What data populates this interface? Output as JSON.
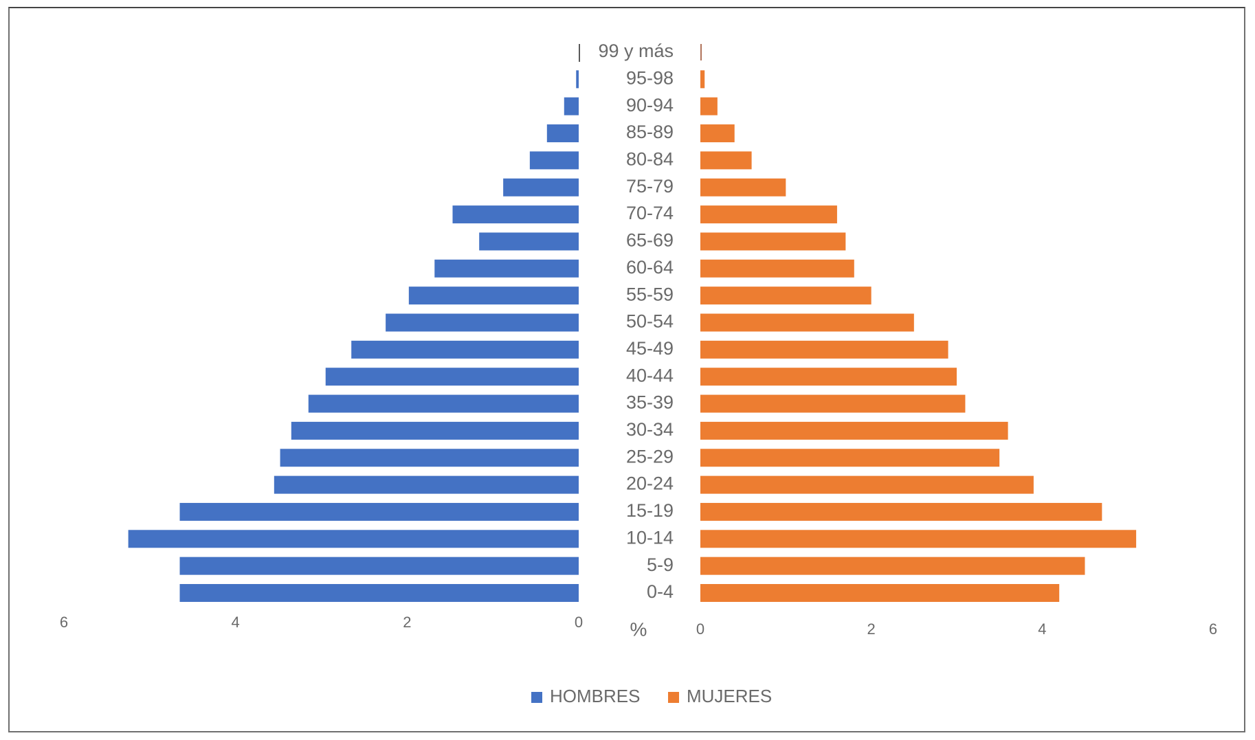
{
  "chart_data": {
    "type": "bar",
    "orientation": "horizontal",
    "layout": "population-pyramid",
    "categories": [
      "0-4",
      "5-9",
      "10-14",
      "15-19",
      "20-24",
      "25-29",
      "30-34",
      "35-39",
      "40-44",
      "45-49",
      "50-54",
      "55-59",
      "60-64",
      "65-69",
      "70-74",
      "75-79",
      "80-84",
      "85-89",
      "90-94",
      "95-98",
      "99 y más"
    ],
    "series": [
      {
        "name": "HOMBRES",
        "color": "#4472c4",
        "side": "left",
        "values": [
          4.65,
          4.65,
          5.25,
          4.65,
          3.55,
          3.48,
          3.35,
          3.15,
          2.95,
          2.65,
          2.25,
          1.98,
          1.68,
          1.16,
          1.47,
          0.88,
          0.57,
          0.37,
          0.17,
          0.03,
          0.0
        ]
      },
      {
        "name": "MUJERES",
        "color": "#ed7d31",
        "side": "right",
        "values": [
          4.2,
          4.5,
          5.1,
          4.7,
          3.9,
          3.5,
          3.6,
          3.1,
          3.0,
          2.9,
          2.5,
          2.0,
          1.8,
          1.7,
          1.6,
          1.0,
          0.6,
          0.4,
          0.2,
          0.05,
          0.0
        ]
      }
    ],
    "xaxis_left": {
      "ticks": [
        "6",
        "4",
        "2",
        "0"
      ],
      "range": [
        0,
        6
      ]
    },
    "xaxis_right": {
      "ticks": [
        "0",
        "2",
        "4",
        "6"
      ],
      "range": [
        0,
        6
      ]
    },
    "unit_label": "%",
    "legend": {
      "position": "bottom",
      "items": [
        "HOMBRES",
        "MUJERES"
      ]
    },
    "grid": false
  }
}
